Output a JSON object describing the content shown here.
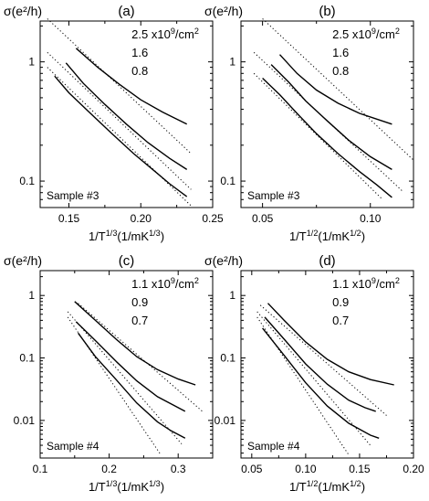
{
  "chart_data": [
    {
      "type": "line",
      "panel_label": "(a)",
      "ylabel": "σ(e²/h)",
      "xlabel": "1/T^{1/3}(1/mK^{1/3})",
      "x_scale": "linear",
      "y_scale": "log",
      "xlim": [
        0.13,
        0.25
      ],
      "ylim": [
        0.06,
        2.2
      ],
      "x_ticks": [
        0.15,
        0.2,
        0.25
      ],
      "x_tick_labels": [
        "0.15",
        "0.20",
        "0.25"
      ],
      "y_ticks": [
        0.1,
        1
      ],
      "y_tick_labels": [
        "0.1",
        "1"
      ],
      "legend": [
        "2.5 x10^{9}/cm^{2}",
        "1.6",
        "0.8"
      ],
      "sample_label": "Sample #3",
      "series": [
        {
          "legend_index": 0,
          "x": [
            0.155,
            0.17,
            0.185,
            0.2,
            0.215,
            0.232
          ],
          "y": [
            1.3,
            0.9,
            0.65,
            0.48,
            0.38,
            0.3
          ]
        },
        {
          "legend_index": 1,
          "x": [
            0.148,
            0.16,
            0.175,
            0.19,
            0.205,
            0.22,
            0.232
          ],
          "y": [
            0.98,
            0.66,
            0.44,
            0.3,
            0.21,
            0.155,
            0.125
          ]
        },
        {
          "legend_index": 2,
          "x": [
            0.14,
            0.15,
            0.165,
            0.18,
            0.195,
            0.21,
            0.22,
            0.232
          ],
          "y": [
            0.76,
            0.55,
            0.37,
            0.25,
            0.17,
            0.12,
            0.095,
            0.074
          ]
        }
      ],
      "fits": [
        {
          "x": [
            0.135,
            0.235
          ],
          "y": [
            2.3,
            0.17
          ]
        },
        {
          "x": [
            0.135,
            0.235
          ],
          "y": [
            1.2,
            0.085
          ]
        },
        {
          "x": [
            0.135,
            0.235
          ],
          "y": [
            0.9,
            0.062
          ]
        }
      ]
    },
    {
      "type": "line",
      "panel_label": "(b)",
      "ylabel": "σ(e²/h)",
      "xlabel": "1/T^{1/2}(1/mK^{1/2})",
      "x_scale": "linear",
      "y_scale": "log",
      "xlim": [
        0.04,
        0.12
      ],
      "ylim": [
        0.06,
        2.2
      ],
      "x_ticks": [
        0.05,
        0.1
      ],
      "x_tick_labels": [
        "0.05",
        "0.10"
      ],
      "y_ticks": [
        0.1,
        1
      ],
      "y_tick_labels": [
        "0.1",
        "1"
      ],
      "legend": [
        "2.5 x10^{9}/cm^{2}",
        "1.6",
        "0.8"
      ],
      "sample_label": "Sample #3",
      "series": [
        {
          "legend_index": 0,
          "x": [
            0.058,
            0.066,
            0.075,
            0.085,
            0.095,
            0.11
          ],
          "y": [
            1.15,
            0.8,
            0.58,
            0.45,
            0.37,
            0.3
          ]
        },
        {
          "legend_index": 1,
          "x": [
            0.054,
            0.062,
            0.07,
            0.08,
            0.09,
            0.1,
            0.11
          ],
          "y": [
            0.95,
            0.68,
            0.47,
            0.32,
            0.22,
            0.16,
            0.125
          ]
        },
        {
          "legend_index": 2,
          "x": [
            0.05,
            0.058,
            0.066,
            0.075,
            0.085,
            0.095,
            0.103,
            0.11
          ],
          "y": [
            0.73,
            0.53,
            0.37,
            0.25,
            0.17,
            0.12,
            0.093,
            0.073
          ]
        }
      ],
      "fits": [
        {
          "x": [
            0.05,
            0.12
          ],
          "y": [
            2.3,
            0.15
          ]
        },
        {
          "x": [
            0.046,
            0.115
          ],
          "y": [
            1.2,
            0.082
          ]
        },
        {
          "x": [
            0.046,
            0.105
          ],
          "y": [
            0.8,
            0.072
          ]
        }
      ]
    },
    {
      "type": "line",
      "panel_label": "(c)",
      "ylabel": "σ(e²/h)",
      "xlabel": "1/T^{1/3}(1/mK^{1/3})",
      "x_scale": "linear",
      "y_scale": "log",
      "xlim": [
        0.1,
        0.35
      ],
      "ylim": [
        0.0025,
        2.5
      ],
      "x_ticks": [
        0.1,
        0.2,
        0.3
      ],
      "x_tick_labels": [
        "0.1",
        "0.2",
        "0.3"
      ],
      "y_ticks": [
        0.01,
        0.1,
        1
      ],
      "y_tick_labels": [
        "0.01",
        "0.1",
        "1"
      ],
      "legend": [
        "1.1 x10^{9}/cm^{2}",
        "0.9",
        "0.7"
      ],
      "sample_label": "Sample #4",
      "series": [
        {
          "legend_index": 0,
          "x": [
            0.15,
            0.18,
            0.21,
            0.24,
            0.27,
            0.3,
            0.325
          ],
          "y": [
            0.8,
            0.4,
            0.2,
            0.105,
            0.065,
            0.046,
            0.037
          ]
        },
        {
          "legend_index": 1,
          "x": [
            0.152,
            0.18,
            0.21,
            0.24,
            0.27,
            0.3,
            0.31
          ],
          "y": [
            0.38,
            0.19,
            0.088,
            0.043,
            0.024,
            0.016,
            0.014
          ]
        },
        {
          "legend_index": 2,
          "x": [
            0.155,
            0.18,
            0.21,
            0.24,
            0.27,
            0.29,
            0.31
          ],
          "y": [
            0.25,
            0.105,
            0.045,
            0.019,
            0.0095,
            0.0068,
            0.0052
          ]
        }
      ],
      "fits": [
        {
          "x": [
            0.155,
            0.335
          ],
          "y": [
            0.75,
            0.014
          ]
        },
        {
          "x": [
            0.14,
            0.305
          ],
          "y": [
            0.55,
            0.0042
          ]
        },
        {
          "x": [
            0.14,
            0.275
          ],
          "y": [
            0.45,
            0.0028
          ]
        }
      ]
    },
    {
      "type": "line",
      "panel_label": "(d)",
      "ylabel": "σ(e²/h)",
      "xlabel": "1/T^{1/2}(1/mK^{1/2})",
      "x_scale": "linear",
      "y_scale": "log",
      "xlim": [
        0.04,
        0.2
      ],
      "ylim": [
        0.0025,
        2.5
      ],
      "x_ticks": [
        0.05,
        0.1,
        0.15,
        0.2
      ],
      "x_tick_labels": [
        "0.05",
        "0.10",
        "0.15",
        "0.20"
      ],
      "y_ticks": [
        0.01,
        0.1,
        1
      ],
      "y_tick_labels": [
        "0.01",
        "0.1",
        "1"
      ],
      "legend": [
        "1.1 x10^{9}/cm^{2}",
        "0.9",
        "0.7"
      ],
      "sample_label": "Sample #4",
      "series": [
        {
          "legend_index": 0,
          "x": [
            0.065,
            0.08,
            0.1,
            0.12,
            0.14,
            0.16,
            0.182
          ],
          "y": [
            0.75,
            0.4,
            0.18,
            0.095,
            0.06,
            0.045,
            0.037
          ]
        },
        {
          "legend_index": 1,
          "x": [
            0.062,
            0.08,
            0.1,
            0.12,
            0.14,
            0.155,
            0.165
          ],
          "y": [
            0.45,
            0.2,
            0.08,
            0.038,
            0.021,
            0.016,
            0.014
          ]
        },
        {
          "legend_index": 2,
          "x": [
            0.06,
            0.08,
            0.1,
            0.12,
            0.14,
            0.16,
            0.168
          ],
          "y": [
            0.3,
            0.11,
            0.04,
            0.017,
            0.009,
            0.0058,
            0.0052
          ]
        }
      ],
      "fits": [
        {
          "x": [
            0.058,
            0.175
          ],
          "y": [
            0.7,
            0.012
          ]
        },
        {
          "x": [
            0.055,
            0.16
          ],
          "y": [
            0.55,
            0.004
          ]
        },
        {
          "x": [
            0.055,
            0.14
          ],
          "y": [
            0.45,
            0.0028
          ]
        }
      ]
    }
  ]
}
